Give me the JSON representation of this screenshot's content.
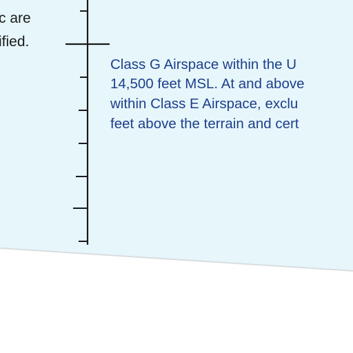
{
  "colors": {
    "sky": "#e6f6fb",
    "ground": "#ffffff",
    "axis": "#1a1a1a",
    "note_text": "#1a1a1a",
    "class_g_text": "#1e3f8a"
  },
  "left_note": {
    "lines": [
      "c are",
      "ified."
    ]
  },
  "class_g_note": {
    "lines": [
      "Class G Airspace within the U",
      "14,500 feet MSL. At and above",
      "within Class E Airspace, exclu",
      "feet above the terrain and cert"
    ]
  }
}
